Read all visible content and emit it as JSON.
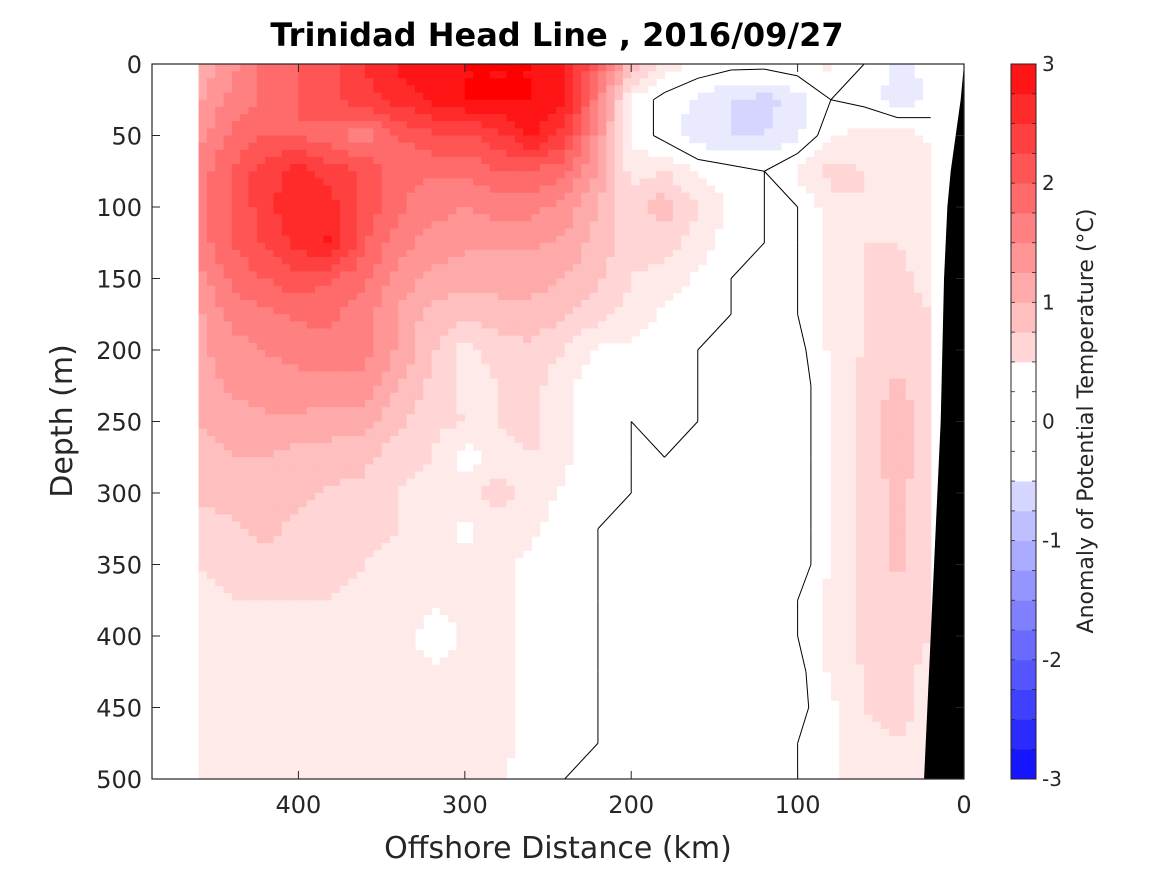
{
  "chart_data": {
    "type": "heatmap",
    "title": "Trinidad Head Line , 2016/09/27",
    "xlabel": "Offshore Distance (km)",
    "ylabel": "Depth (m)",
    "xlim": [
      488,
      0
    ],
    "ylim": [
      0,
      500
    ],
    "x_reversed": true,
    "y_reversed": true,
    "x_ticks": [
      "400",
      "300",
      "200",
      "100",
      "0"
    ],
    "y_ticks": [
      "0",
      "50",
      "100",
      "150",
      "200",
      "250",
      "300",
      "350",
      "400",
      "450",
      "500"
    ],
    "grid": false,
    "colorbar": {
      "label": "Anomaly of Potential Temperature (°C)",
      "min": -3,
      "max": 3,
      "step": 0.25,
      "ticks": [
        "3",
        "2",
        "1",
        "0",
        "-1",
        "-2",
        "-3"
      ],
      "positive_color": "#ff0000",
      "negative_color": "#0000ff"
    },
    "data_extent_km": [
      460,
      20
    ],
    "bottom_mask_color": "#000000",
    "anomaly_grid": {
      "x_km": [
        460,
        440,
        420,
        400,
        380,
        360,
        340,
        320,
        300,
        280,
        260,
        240,
        220,
        200,
        180,
        160,
        140,
        120,
        100,
        80,
        60,
        40,
        20
      ],
      "depth_m": [
        0,
        25,
        50,
        75,
        100,
        125,
        150,
        175,
        200,
        225,
        250,
        275,
        300,
        325,
        350,
        375,
        400,
        425,
        450,
        475,
        500
      ],
      "values": [
        [
          1.0,
          1.4,
          1.8,
          2.0,
          2.2,
          2.5,
          2.8,
          3.0,
          3.0,
          3.0,
          3.0,
          2.8,
          2.0,
          0.9,
          0.4,
          0.2,
          0.1,
          0.1,
          0.2,
          0.3,
          0.0,
          -0.3,
          -0.2
        ],
        [
          1.2,
          1.6,
          1.8,
          2.0,
          2.2,
          2.4,
          2.6,
          2.8,
          3.0,
          3.0,
          3.0,
          2.8,
          1.6,
          0.2,
          -0.1,
          -0.3,
          -0.5,
          -0.6,
          -0.4,
          0.0,
          -0.1,
          -0.4,
          -0.2
        ],
        [
          1.4,
          1.8,
          2.0,
          2.0,
          1.8,
          1.6,
          2.0,
          2.2,
          2.2,
          2.4,
          2.8,
          2.4,
          1.4,
          0.2,
          -0.1,
          -0.4,
          -0.5,
          -0.5,
          -0.3,
          0.2,
          0.4,
          0.4,
          0.2
        ],
        [
          1.6,
          2.0,
          2.4,
          2.6,
          2.4,
          2.2,
          1.8,
          1.8,
          1.8,
          2.0,
          2.0,
          1.8,
          1.2,
          0.4,
          0.5,
          0.2,
          0.1,
          0.0,
          0.3,
          0.6,
          0.5,
          0.4,
          0.3
        ],
        [
          1.6,
          2.0,
          2.4,
          2.7,
          2.6,
          2.2,
          1.8,
          1.6,
          1.5,
          1.6,
          1.6,
          1.4,
          1.0,
          0.6,
          0.9,
          0.5,
          0.2,
          0.0,
          0.0,
          0.4,
          0.5,
          0.4,
          0.3
        ],
        [
          1.6,
          2.0,
          2.3,
          2.6,
          2.8,
          2.0,
          1.6,
          1.4,
          1.3,
          1.3,
          1.3,
          1.2,
          0.9,
          0.6,
          0.6,
          0.4,
          0.1,
          0.0,
          0.0,
          0.3,
          0.5,
          0.5,
          0.3
        ],
        [
          1.4,
          1.8,
          2.0,
          2.2,
          2.0,
          1.8,
          1.4,
          1.2,
          1.1,
          1.1,
          1.1,
          1.0,
          0.8,
          0.5,
          0.4,
          0.2,
          0.0,
          0.0,
          0.0,
          0.3,
          0.5,
          0.6,
          0.4
        ],
        [
          1.2,
          1.6,
          1.7,
          1.8,
          1.8,
          1.6,
          1.2,
          0.9,
          0.8,
          0.9,
          0.9,
          0.8,
          0.6,
          0.4,
          0.2,
          0.1,
          0.0,
          0.0,
          0.0,
          0.3,
          0.5,
          0.6,
          0.5
        ],
        [
          1.2,
          1.4,
          1.5,
          1.6,
          1.7,
          1.6,
          1.2,
          0.8,
          0.4,
          0.6,
          0.7,
          0.5,
          0.2,
          0.2,
          0.1,
          0.0,
          -0.1,
          -0.2,
          -0.1,
          0.3,
          0.5,
          0.7,
          0.5
        ],
        [
          1.1,
          1.3,
          1.4,
          1.4,
          1.4,
          1.4,
          1.0,
          0.7,
          0.4,
          0.5,
          0.6,
          0.3,
          0.1,
          0.1,
          0.1,
          0.0,
          -0.2,
          -0.2,
          -0.2,
          0.3,
          0.6,
          0.8,
          0.6
        ],
        [
          1.0,
          1.1,
          1.2,
          1.2,
          1.1,
          1.1,
          0.8,
          0.6,
          0.5,
          0.5,
          0.6,
          0.3,
          0.1,
          0.0,
          0.1,
          0.0,
          -0.2,
          -0.2,
          -0.2,
          0.3,
          0.6,
          0.9,
          0.6
        ],
        [
          0.9,
          1.0,
          1.0,
          0.9,
          0.9,
          0.8,
          0.6,
          0.5,
          0.1,
          0.4,
          0.5,
          0.3,
          0.1,
          0.0,
          0.0,
          0.0,
          -0.2,
          -0.2,
          -0.2,
          0.3,
          0.6,
          0.9,
          0.6
        ],
        [
          0.8,
          0.9,
          0.8,
          0.8,
          0.7,
          0.7,
          0.5,
          0.4,
          0.4,
          0.6,
          0.4,
          0.2,
          0.1,
          0.0,
          0.0,
          -0.1,
          -0.2,
          0.0,
          -0.2,
          0.3,
          0.6,
          0.8,
          0.6
        ],
        [
          0.6,
          0.7,
          0.8,
          0.7,
          0.7,
          0.6,
          0.5,
          0.4,
          0.2,
          0.4,
          0.3,
          0.1,
          0.0,
          0.0,
          0.0,
          -0.1,
          -0.2,
          -0.1,
          -0.2,
          0.3,
          0.6,
          0.8,
          0.6
        ],
        [
          0.5,
          0.6,
          0.7,
          0.6,
          0.6,
          0.5,
          0.4,
          0.3,
          0.3,
          0.3,
          0.2,
          0.1,
          0.0,
          0.0,
          0.0,
          -0.1,
          -0.2,
          -0.2,
          -0.2,
          0.3,
          0.6,
          0.8,
          0.6
        ],
        [
          0.4,
          0.5,
          0.5,
          0.5,
          0.5,
          0.4,
          0.4,
          0.3,
          0.3,
          0.3,
          0.2,
          0.1,
          0.0,
          0.0,
          0.0,
          -0.1,
          -0.2,
          -0.2,
          0.0,
          0.3,
          0.6,
          0.7,
          0.5
        ],
        [
          0.3,
          0.3,
          0.4,
          0.5,
          0.4,
          0.4,
          0.4,
          0.1,
          0.3,
          0.3,
          0.2,
          0.1,
          0.0,
          0.0,
          0.0,
          -0.1,
          -0.2,
          -0.2,
          0.0,
          0.3,
          0.6,
          0.7,
          0.5
        ],
        [
          0.3,
          0.4,
          0.5,
          0.4,
          0.4,
          0.4,
          0.3,
          0.3,
          0.3,
          0.3,
          0.2,
          0.1,
          0.0,
          0.0,
          0.0,
          -0.1,
          -0.2,
          -0.2,
          -0.1,
          0.3,
          0.5,
          0.6,
          0.4
        ],
        [
          0.3,
          0.4,
          0.4,
          0.4,
          0.4,
          0.3,
          0.3,
          0.3,
          0.3,
          0.3,
          0.2,
          0.1,
          0.0,
          0.0,
          0.0,
          -0.1,
          -0.2,
          -0.2,
          -0.1,
          0.2,
          0.5,
          0.6,
          0.4
        ],
        [
          0.3,
          0.3,
          0.3,
          0.3,
          0.3,
          0.3,
          0.3,
          0.3,
          0.3,
          0.3,
          0.2,
          0.1,
          0.0,
          0.0,
          0.0,
          -0.1,
          -0.2,
          -0.1,
          0.0,
          0.2,
          0.4,
          0.5,
          0.4
        ],
        [
          0.3,
          0.3,
          0.3,
          0.3,
          0.3,
          0.3,
          0.3,
          0.3,
          0.3,
          0.3,
          0.1,
          0.0,
          0.0,
          0.0,
          0.0,
          -0.1,
          -0.2,
          -0.1,
          0.0,
          0.2,
          0.4,
          0.5,
          0.4
        ]
      ]
    },
    "bathymetry_km_at_depth": [
      [
        0,
        0
      ],
      [
        25,
        2
      ],
      [
        50,
        5
      ],
      [
        75,
        8
      ],
      [
        100,
        10
      ],
      [
        150,
        12
      ],
      [
        200,
        13
      ],
      [
        250,
        14
      ],
      [
        300,
        16
      ],
      [
        350,
        18
      ],
      [
        400,
        20
      ],
      [
        450,
        22
      ],
      [
        500,
        24
      ]
    ]
  }
}
